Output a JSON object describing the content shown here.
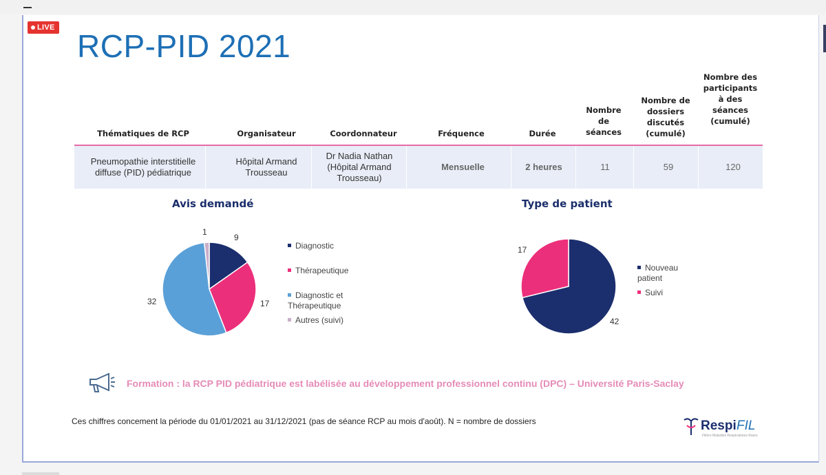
{
  "live_badge": "LIVE",
  "slide_title": "RCP-PID 2021",
  "table": {
    "headers": [
      "Thématiques de RCP",
      "Organisateur",
      "Coordonnateur",
      "Fréquence",
      "Durée",
      "Nombre de séances",
      "Nombre de dossiers discutés (cumulé)",
      "Nombre des participants à des séances (cumulé)"
    ],
    "row": [
      "Pneumopathie interstitielle diffuse (PID) pédiatrique",
      "Hôpital Armand Trousseau",
      "Dr Nadia Nathan (Hôpital Armand Trousseau)",
      "Mensuelle",
      "2 heures",
      "11",
      "59",
      "120"
    ]
  },
  "chart_data": [
    {
      "type": "pie",
      "title": "Avis demandé",
      "categories": [
        "Diagnostic",
        "Thérapeutique",
        "Diagnostic et Thérapeutique",
        "Autres (suivi)"
      ],
      "values": [
        9,
        17,
        32,
        1
      ],
      "colors": [
        "#1b2e6e",
        "#ec2f7b",
        "#5aa0d8",
        "#c9aec9"
      ],
      "legend": "right"
    },
    {
      "type": "pie",
      "title": "Type de patient",
      "categories": [
        "Nouveau patient",
        "Suivi"
      ],
      "values": [
        42,
        17
      ],
      "colors": [
        "#1b2e6e",
        "#ec2f7b"
      ],
      "legend": "right"
    }
  ],
  "formation_text": "Formation : la RCP PID pédiatrique est labélisée au développement professionnel continu (DPC) – Université Paris-Saclay",
  "footnote": "Ces chiffres concement la période du 01/01/2021 au 31/12/2021 (pas de séance RCP au mois d'août). N = nombre de dossiers",
  "logo_text": "RespiFIL",
  "icons": [
    "megaphone-icon",
    "respifil-logo"
  ]
}
